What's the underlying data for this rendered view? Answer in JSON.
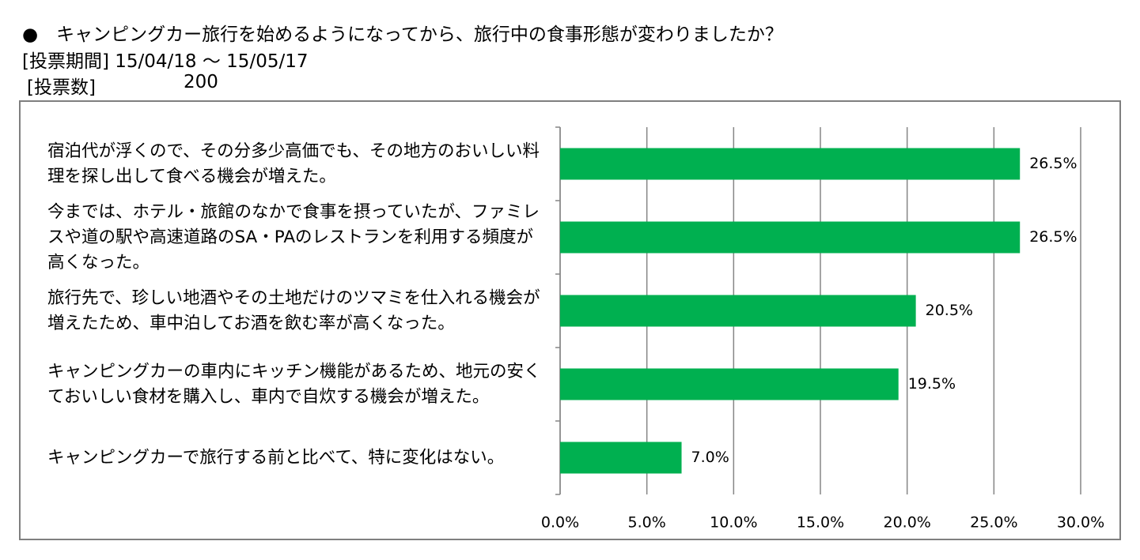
{
  "header": {
    "title": "●　キャンピングカー旅行を始めるようになってから、旅行中の食事形態が変わりましたか？",
    "period": "[投票期間] 15/04/18 〜 15/05/17",
    "votes_label": "[投票数]",
    "votes": "200"
  },
  "chart_data": {
    "type": "barh",
    "color": "#00b050",
    "grid": true,
    "categories": [
      "宿泊代が浮くので、その分多少高価でも、その地方のおいしい料理を探し出して食べる機会が増えた。",
      "今までは、ホテル・旅館のなかで食事を摂っていたが、ファミレスや道の駅や高速道路のSA・PAのレストランを利用する頻度が高くなった。",
      "旅行先で、珍しい地酒やその土地だけのツマミを仕入れる機会が増えたため、車中泊してお酒を飲む率が高くなった。",
      "キャンピングカーの車内にキッチン機能があるため、地元の安くておいしい食材を購入し、車内で自炊する機会が増えた。",
      "キャンピングカーで旅行する前と比べて、特に変化はない。"
    ],
    "values": [
      26.5,
      26.5,
      20.5,
      19.5,
      7.0
    ],
    "value_labels": [
      "26.5%",
      "26.5%",
      "20.5%",
      "19.5%",
      "7.0%"
    ],
    "xlim": [
      0,
      30
    ],
    "xticks": [
      {
        "value": 0,
        "label": "0.0%"
      },
      {
        "value": 5,
        "label": "5.0%"
      },
      {
        "value": 10,
        "label": "10.0%"
      },
      {
        "value": 15,
        "label": "15.0%"
      },
      {
        "value": 20,
        "label": "20.0%"
      },
      {
        "value": 25,
        "label": "25.0%"
      },
      {
        "value": 30,
        "label": "30.0%"
      }
    ]
  }
}
